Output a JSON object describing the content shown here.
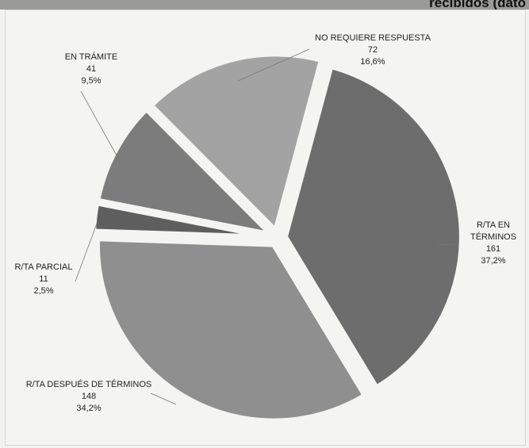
{
  "chart_data": {
    "type": "pie",
    "title": "recibidos (dato",
    "slices": [
      {
        "name": "R/TA EN TÉRMINOS",
        "label_lines": [
          "R/TA EN",
          "TÉRMINOS"
        ],
        "value": 161,
        "percent": "37,2%",
        "color": "#6d6d6d"
      },
      {
        "name": "R/TA DESPUÉS DE TÉRMINOS",
        "label_lines": [
          "R/TA DESPUÉS DE TÉRMINOS"
        ],
        "value": 148,
        "percent": "34,2%",
        "color": "#8f8f8f"
      },
      {
        "name": "R/TA PARCIAL",
        "label_lines": [
          "R/TA PARCIAL"
        ],
        "value": 11,
        "percent": "2,5%",
        "color": "#5e5e5e"
      },
      {
        "name": "EN TRÁMITE",
        "label_lines": [
          "EN TRÁMITE"
        ],
        "value": 41,
        "percent": "9,5%",
        "color": "#7c7c7c"
      },
      {
        "name": "NO REQUIERE RESPUESTA",
        "label_lines": [
          "NO REQUIERE RESPUESTA"
        ],
        "value": 72,
        "percent": "16,6%",
        "color": "#a3a3a3"
      }
    ]
  }
}
